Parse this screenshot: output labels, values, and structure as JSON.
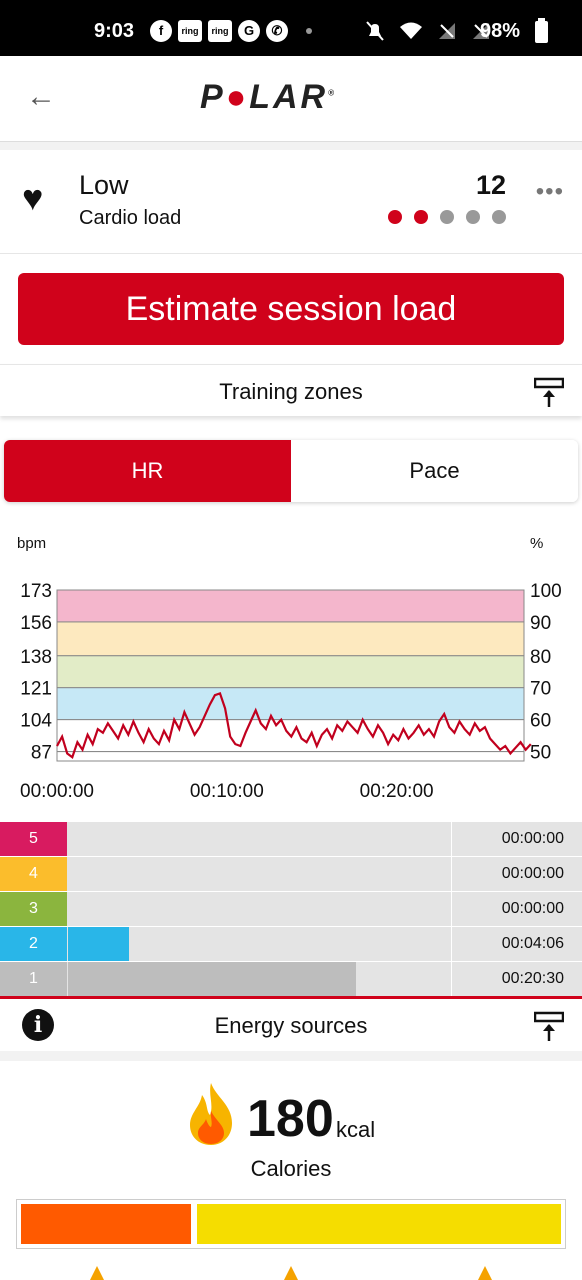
{
  "status_bar": {
    "time": "9:03",
    "battery": "98%"
  },
  "header": {
    "logo_text": "POLAR",
    "back_icon": "arrow-left-icon"
  },
  "cardio": {
    "title": "Low",
    "subtitle": "Cardio load",
    "value": "12",
    "level_dots_on": 2,
    "level_dots_total": 5
  },
  "estimate_button": "Estimate session load",
  "training_zones": {
    "title": "Training zones",
    "tabs": [
      {
        "label": "HR",
        "active": true
      },
      {
        "label": "Pace",
        "active": false
      }
    ]
  },
  "chart_data": {
    "type": "line",
    "ylabel": "bpm",
    "y2label": "%",
    "y_ticks": [
      "173",
      "156",
      "138",
      "121",
      "104",
      "87"
    ],
    "y2_ticks": [
      "100",
      "90",
      "80",
      "70",
      "60",
      "50"
    ],
    "x_ticks": [
      "00:00:00",
      "00:10:00",
      "00:20:00"
    ],
    "ylim": [
      82,
      173
    ],
    "zone_bands": [
      {
        "zone": 5,
        "from": 156,
        "to": 173,
        "color": "#f4b6cc"
      },
      {
        "zone": 4,
        "from": 138,
        "to": 156,
        "color": "#fde9bf"
      },
      {
        "zone": 3,
        "from": 121,
        "to": 138,
        "color": "#e2ecc7"
      },
      {
        "zone": 2,
        "from": 104,
        "to": 121,
        "color": "#c6e8f6"
      },
      {
        "zone": 1,
        "from": 87,
        "to": 104,
        "color": "#ffffff"
      }
    ],
    "series": [
      {
        "color": "#c1001e",
        "x_minutes": [
          0,
          0.3,
          0.6,
          0.9,
          1.2,
          1.5,
          1.8,
          2.1,
          2.4,
          2.7,
          3,
          3.3,
          3.6,
          3.9,
          4.2,
          4.5,
          4.8,
          5.1,
          5.4,
          5.7,
          6,
          6.3,
          6.6,
          6.9,
          7.2,
          7.5,
          7.8,
          8.1,
          8.4,
          8.7,
          9,
          9.3,
          9.6,
          9.9,
          10.2,
          10.5,
          10.8,
          11.1,
          11.4,
          11.7,
          12,
          12.3,
          12.6,
          12.9,
          13.2,
          13.5,
          13.8,
          14.1,
          14.4,
          14.7,
          15,
          15.3,
          15.6,
          15.9,
          16.2,
          16.5,
          16.8,
          17.1,
          17.4,
          17.7,
          18,
          18.3,
          18.6,
          18.9,
          19.2,
          19.5,
          19.8,
          20.1,
          20.4,
          20.7,
          21,
          21.3,
          21.6,
          21.9,
          22.2,
          22.5,
          22.8,
          23.1,
          23.4,
          23.7,
          24,
          24.3,
          24.6,
          24.9,
          25.2,
          25.5,
          25.8,
          26.1,
          26.4,
          26.7,
          27,
          27.3,
          27.6,
          27.9
        ],
        "bpm": [
          90,
          95,
          86,
          84,
          92,
          88,
          96,
          91,
          99,
          97,
          102,
          98,
          94,
          101,
          96,
          103,
          97,
          92,
          99,
          94,
          91,
          98,
          93,
          104,
          99,
          108,
          102,
          96,
          100,
          106,
          112,
          117,
          118,
          110,
          95,
          91,
          90,
          97,
          103,
          109,
          102,
          99,
          106,
          101,
          104,
          98,
          95,
          100,
          94,
          92,
          97,
          90,
          96,
          99,
          94,
          101,
          98,
          103,
          100,
          97,
          104,
          99,
          95,
          101,
          97,
          91,
          96,
          93,
          99,
          94,
          97,
          101,
          96,
          99,
          95,
          103,
          107,
          100,
          97,
          103,
          99,
          96,
          102,
          98,
          100,
          94,
          91,
          88,
          90,
          86,
          89,
          92,
          88,
          91
        ]
      }
    ]
  },
  "zones_table": [
    {
      "zone": "5",
      "color": "#d81b60",
      "fraction": 0.0,
      "time": "00:00:00"
    },
    {
      "zone": "4",
      "color": "#fbbd2c",
      "fraction": 0.0,
      "time": "00:00:00"
    },
    {
      "zone": "3",
      "color": "#8bb53e",
      "fraction": 0.0,
      "time": "00:00:00"
    },
    {
      "zone": "2",
      "color": "#29b6e8",
      "fraction": 0.16,
      "time": "00:04:06"
    },
    {
      "zone": "1",
      "color": "#bdbdbd",
      "fraction": 0.753,
      "time": "00:20:30"
    }
  ],
  "energy_sources": {
    "title": "Energy sources",
    "calories_value": "180",
    "calories_unit": "kcal",
    "calories_label": "Calories",
    "bar_colors": [
      "#ff5a00",
      "#f5dd00"
    ]
  }
}
